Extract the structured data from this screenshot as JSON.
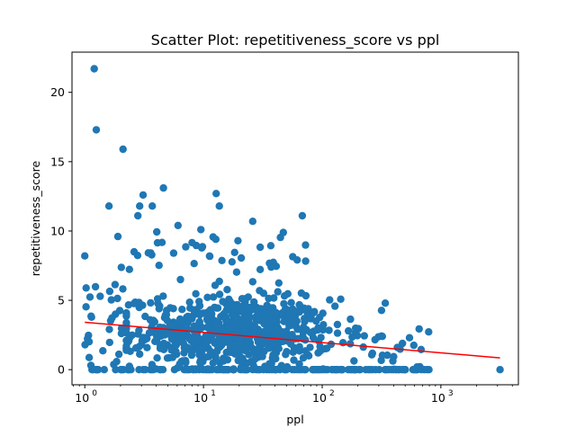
{
  "chart_data": {
    "type": "scatter",
    "title": "Scatter Plot: repetitiveness_score vs ppl",
    "xlabel": "ppl",
    "ylabel": "repetitiveness_score",
    "xscale": "log",
    "xlim": [
      0.78,
      4500
    ],
    "ylim": [
      -1.09,
      22.9
    ],
    "x_ticks": [
      {
        "value": 1,
        "base": "10",
        "exp": "0"
      },
      {
        "value": 10,
        "base": "10",
        "exp": "1"
      },
      {
        "value": 100,
        "base": "10",
        "exp": "2"
      },
      {
        "value": 1000,
        "base": "10",
        "exp": "3"
      }
    ],
    "y_ticks": [
      {
        "value": 0,
        "label": "0"
      },
      {
        "value": 5,
        "label": "5"
      },
      {
        "value": 10,
        "label": "10"
      },
      {
        "value": 15,
        "label": "15"
      },
      {
        "value": 20,
        "label": "20"
      }
    ],
    "point_color": "#1f77b4",
    "trend_color": "#ff0000",
    "grid": false,
    "trend_line": {
      "x": [
        1.0,
        3150
      ],
      "y": [
        3.42,
        0.85
      ]
    },
    "highlighted_points": [
      {
        "x": 1.2,
        "y": 21.7
      },
      {
        "x": 1.25,
        "y": 17.3
      },
      {
        "x": 2.1,
        "y": 15.9
      },
      {
        "x": 4.6,
        "y": 13.1
      },
      {
        "x": 12.8,
        "y": 12.7
      },
      {
        "x": 3.1,
        "y": 12.6
      },
      {
        "x": 1.6,
        "y": 11.8
      },
      {
        "x": 2.9,
        "y": 11.8
      },
      {
        "x": 3.7,
        "y": 11.8
      },
      {
        "x": 13.6,
        "y": 11.8
      },
      {
        "x": 2.8,
        "y": 11.1
      },
      {
        "x": 68,
        "y": 11.1
      },
      {
        "x": 26,
        "y": 10.7
      },
      {
        "x": 6.1,
        "y": 10.4
      },
      {
        "x": 9.5,
        "y": 10.1
      },
      {
        "x": 1.9,
        "y": 9.6
      },
      {
        "x": 19.5,
        "y": 9.3
      },
      {
        "x": 2.6,
        "y": 8.5
      },
      {
        "x": 1.0,
        "y": 8.2
      },
      {
        "x": 5.6,
        "y": 8.4
      },
      {
        "x": 340,
        "y": 4.8
      },
      {
        "x": 430,
        "y": 1.6
      },
      {
        "x": 3150,
        "y": 0.0
      }
    ]
  }
}
